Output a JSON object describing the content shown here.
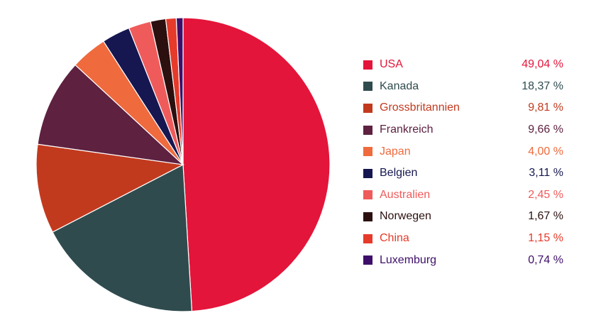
{
  "chart_data": {
    "type": "pie",
    "title": "",
    "categories": [
      "USA",
      "Kanada",
      "Grossbritannien",
      "Frankreich",
      "Japan",
      "Belgien",
      "Australien",
      "Norwegen",
      "China",
      "Luxemburg"
    ],
    "values": [
      49.04,
      18.37,
      9.81,
      9.66,
      4.0,
      3.11,
      2.45,
      1.67,
      1.15,
      0.74
    ],
    "value_labels": [
      "49,04 %",
      "18,37 %",
      "9,81 %",
      "9,66 %",
      "4,00 %",
      "3,11 %",
      "2,45 %",
      "1,67 %",
      "1,15 %",
      "0,74 %"
    ],
    "colors": [
      "#e4153a",
      "#2f4b4e",
      "#c23a1e",
      "#5e2140",
      "#ef6a3d",
      "#161750",
      "#ef5b5b",
      "#2c1010",
      "#e63a2a",
      "#3e0f6a"
    ],
    "legend_position": "right"
  }
}
